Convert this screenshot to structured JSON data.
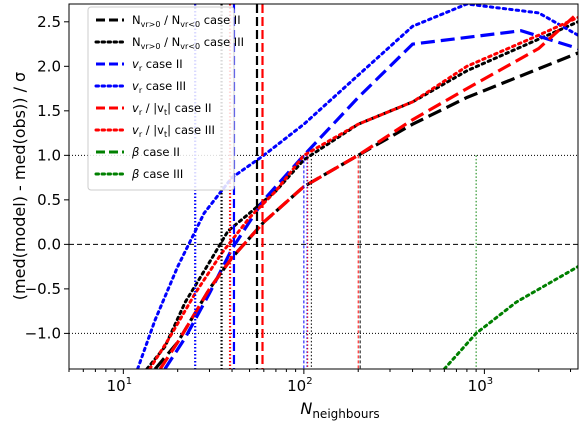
{
  "chart_data": {
    "type": "line",
    "xlabel": "N",
    "xlabel_sub": "neighbours",
    "ylabel": "(med(model) - med(obs)) / σ",
    "xscale": "log",
    "xlim": [
      5,
      3300
    ],
    "ylim": [
      -1.4,
      2.7
    ],
    "x_ticks": [
      {
        "value": 10,
        "base": "10",
        "exp": "1"
      },
      {
        "value": 100,
        "base": "10",
        "exp": "2"
      },
      {
        "value": 1000,
        "base": "10",
        "exp": "3"
      }
    ],
    "y_ticks": [
      {
        "value": -1.0,
        "label": "−1.0"
      },
      {
        "value": -0.5,
        "label": "−0.5"
      },
      {
        "value": 0.0,
        "label": "0.0"
      },
      {
        "value": 0.5,
        "label": "0.5"
      },
      {
        "value": 1.0,
        "label": "1.0"
      },
      {
        "value": 1.5,
        "label": "1.5"
      },
      {
        "value": 2.0,
        "label": "2.0"
      },
      {
        "value": 2.5,
        "label": "2.5"
      }
    ],
    "reference_lines": [
      {
        "y": 1.0,
        "style": "dotted"
      },
      {
        "y": 0.0,
        "style": "dashed"
      },
      {
        "y": -1.0,
        "style": "dotted"
      }
    ],
    "legend_position": "top-left",
    "series": [
      {
        "name": "N_{v_r>0} / N_{v_r<0} case II",
        "legend_main": "N",
        "legend_sub": "vr>0",
        "legend_mid": " / N",
        "legend_sub2": "vr<0",
        "legend_tail": " case II",
        "color": "#000000",
        "style": "dashed",
        "x": [
          15,
          20,
          30,
          40,
          60,
          100,
          200,
          400,
          800,
          3300
        ],
        "y": [
          -1.4,
          -1.1,
          -0.5,
          -0.15,
          0.25,
          0.65,
          1.0,
          1.35,
          1.65,
          2.15
        ],
        "crossings": [
          55,
          205
        ]
      },
      {
        "name": "N_{v_r>0} / N_{v_r<0} case III",
        "legend_main": "N",
        "legend_sub": "vr>0",
        "legend_mid": " / N",
        "legend_sub2": "vr<0",
        "legend_tail": " case III",
        "color": "#000000",
        "style": "dotted",
        "x": [
          13.5,
          17,
          22,
          30,
          38,
          50,
          70,
          100,
          200,
          400,
          800,
          3300
        ],
        "y": [
          -1.4,
          -1.15,
          -0.65,
          -0.2,
          0.15,
          0.35,
          0.6,
          0.95,
          1.35,
          1.6,
          1.95,
          2.5
        ],
        "crossings": [
          35,
          110
        ]
      },
      {
        "name": "v_r case II",
        "legend_main": "v",
        "legend_sub": "r",
        "legend_tail": " case II",
        "color": "#0000ff",
        "style": "dashed",
        "x": [
          17,
          22,
          30,
          40,
          60,
          100,
          200,
          400,
          1600,
          3300
        ],
        "y": [
          -1.4,
          -1.05,
          -0.55,
          -0.05,
          0.5,
          1.0,
          1.65,
          2.25,
          2.4,
          2.2
        ],
        "crossings": [
          41,
          100
        ]
      },
      {
        "name": "v_r case III",
        "legend_main": "v",
        "legend_sub": "r",
        "legend_tail": " case III",
        "color": "#0000ff",
        "style": "dotted",
        "x": [
          12,
          15,
          20,
          28,
          40,
          60,
          100,
          200,
          400,
          800,
          2000,
          3300
        ],
        "y": [
          -1.4,
          -0.85,
          -0.25,
          0.35,
          0.75,
          1.0,
          1.35,
          1.9,
          2.45,
          2.7,
          2.6,
          2.35
        ],
        "crossings": [
          25,
          104
        ]
      },
      {
        "name": "v_r / |v_t| case II",
        "legend_main": "v",
        "legend_sub": "r",
        "legend_mid": " / |v",
        "legend_sub2": "t",
        "legend_tail": "| case II",
        "color": "#ff0000",
        "style": "dashed",
        "x": [
          16,
          20,
          30,
          40,
          60,
          100,
          200,
          400,
          800,
          2000,
          3300
        ],
        "y": [
          -1.4,
          -1.1,
          -0.5,
          -0.15,
          0.25,
          0.65,
          1.0,
          1.4,
          1.75,
          2.2,
          2.6
        ],
        "crossings": [
          59,
          200
        ]
      },
      {
        "name": "v_r / |v_t| case III",
        "legend_main": "v",
        "legend_sub": "r",
        "legend_mid": " / |v",
        "legend_sub2": "t",
        "legend_tail": "| case III",
        "color": "#ff0000",
        "style": "dotted",
        "x": [
          14,
          18,
          25,
          35,
          50,
          70,
          100,
          200,
          400,
          800,
          2000,
          3300
        ],
        "y": [
          -1.4,
          -1.05,
          -0.55,
          -0.1,
          0.3,
          0.6,
          1.0,
          1.35,
          1.6,
          2.0,
          2.35,
          2.55
        ],
        "crossings": [
          39,
          105
        ]
      },
      {
        "name": "β case II",
        "legend_main": "β",
        "legend_tail": " case II",
        "color": "#008000",
        "style": "dashed",
        "x": [],
        "y": [],
        "crossings": []
      },
      {
        "name": "β case III",
        "legend_main": "β",
        "legend_tail": " case III",
        "color": "#008000",
        "style": "dotted",
        "x": [
          600,
          900,
          1500,
          3300
        ],
        "y": [
          -1.4,
          -1.0,
          -0.65,
          -0.25
        ],
        "crossings": [
          900
        ]
      }
    ]
  }
}
